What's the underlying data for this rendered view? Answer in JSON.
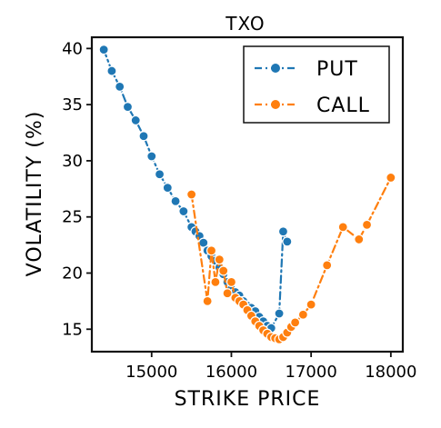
{
  "chart_data": {
    "type": "line",
    "title": "TXO",
    "xlabel": "STRIKE PRICE",
    "ylabel": "VOLATILITY (%)",
    "xlim": [
      14250,
      18150
    ],
    "ylim": [
      13,
      41
    ],
    "xticks": [
      15000,
      16000,
      17000,
      18000
    ],
    "yticks": [
      15,
      20,
      25,
      30,
      35,
      40
    ],
    "grid": false,
    "legend": "top-right",
    "series": [
      {
        "name": "PUT",
        "color": "#1f77b4",
        "x": [
          14400,
          14500,
          14600,
          14700,
          14800,
          14900,
          15000,
          15100,
          15200,
          15300,
          15400,
          15500,
          15550,
          15600,
          15650,
          15700,
          15750,
          15800,
          15850,
          15900,
          15950,
          16000,
          16050,
          16100,
          16150,
          16200,
          16250,
          16300,
          16350,
          16400,
          16450,
          16500,
          16600,
          16650,
          16700
        ],
        "y": [
          39.9,
          38.0,
          36.6,
          34.8,
          33.6,
          32.2,
          30.4,
          28.8,
          27.6,
          26.4,
          25.5,
          24.1,
          23.7,
          23.3,
          22.7,
          22.0,
          21.5,
          21.1,
          20.5,
          19.9,
          19.2,
          18.6,
          18.3,
          18.0,
          17.5,
          17.1,
          16.9,
          16.6,
          16.1,
          15.7,
          15.3,
          15.1,
          16.4,
          23.7,
          22.8
        ]
      },
      {
        "name": "CALL",
        "color": "#ff7f0e",
        "x": [
          15500,
          15700,
          15750,
          15800,
          15850,
          15900,
          15950,
          16000,
          16050,
          16100,
          16150,
          16200,
          16250,
          16300,
          16350,
          16400,
          16450,
          16500,
          16550,
          16600,
          16650,
          16700,
          16750,
          16800,
          16900,
          17000,
          17200,
          17400,
          17600,
          17700,
          18000
        ],
        "y": [
          27.0,
          17.5,
          22.0,
          19.2,
          21.2,
          20.2,
          18.2,
          19.2,
          17.8,
          17.5,
          17.2,
          16.7,
          16.2,
          15.7,
          15.3,
          14.9,
          14.6,
          14.3,
          14.2,
          14.1,
          14.3,
          14.7,
          15.2,
          15.6,
          16.3,
          17.2,
          20.7,
          24.1,
          23.0,
          24.3,
          28.5
        ]
      }
    ]
  }
}
